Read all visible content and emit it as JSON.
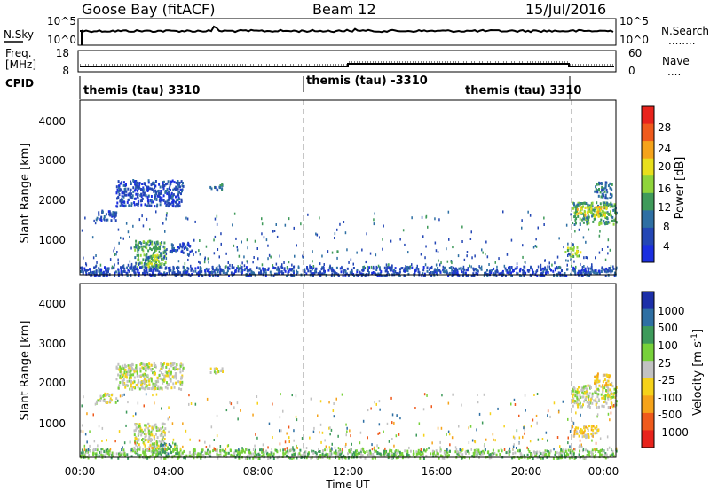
{
  "header": {
    "station": "Goose Bay (fitACF)",
    "beam": "Beam 12",
    "date": "15/Jul/2016"
  },
  "noise_panel": {
    "left_label": "N.Sky",
    "left_ticks": [
      "10^5",
      "10^0"
    ],
    "right_ticks": [
      "10^5",
      "10^0"
    ],
    "right_label": "N.Search",
    "right_legend": "........"
  },
  "freq_panel": {
    "left_label_1": "Freq.",
    "left_label_2": "[MHz]",
    "left_ticks": [
      "18",
      "8"
    ],
    "right_ticks": [
      "60",
      "0"
    ],
    "right_label": "Nave",
    "right_legend": "...."
  },
  "cpid": {
    "label": "CPID",
    "segments": [
      {
        "text": "themis (tau) 3310"
      },
      {
        "text": "themis (tau) -3310"
      },
      {
        "text": "themis (tau) 3310"
      }
    ]
  },
  "axes": {
    "ylabel": "Slant Range [km]",
    "yticks": [
      "4000",
      "3000",
      "2000",
      "1000"
    ],
    "xticks": [
      "00:00",
      "04:00",
      "08:00",
      "12:00",
      "16:00",
      "20:00",
      "00:00"
    ],
    "xlabel": "Time UT"
  },
  "power_scale": {
    "label": "Power [dB]",
    "ticks": [
      "28",
      "24",
      "20",
      "16",
      "12",
      "8",
      "4"
    ],
    "colors": [
      "#e8231c",
      "#ef5a1c",
      "#f5a31a",
      "#e8df1c",
      "#8fd43a",
      "#3f9a5a",
      "#2e6fa3",
      "#2447b5",
      "#1b2fe0"
    ]
  },
  "velocity_scale": {
    "label": "Velocity [m s",
    "label_sup": "-1",
    "label_end": "]",
    "ticks": [
      "1000",
      "500",
      "100",
      "25",
      "-25",
      "-100",
      "-500",
      "-1000"
    ],
    "colors": [
      "#1c2fa8",
      "#2e6fa3",
      "#3d9a5a",
      "#77d13a",
      "#c2c2c2",
      "#f5d21a",
      "#f5a31a",
      "#ef5a1c",
      "#e8231c"
    ]
  },
  "chart_data": {
    "type": "heatmap",
    "x_range_hours": [
      0,
      24
    ],
    "y_range_km": [
      180,
      4500
    ],
    "cpid_changes_hours": [
      10,
      22
    ],
    "power_patches": [
      {
        "t0": 0.7,
        "t1": 1.6,
        "r0": 1550,
        "r1": 1800,
        "level": 1
      },
      {
        "t0": 1.6,
        "t1": 4.6,
        "r0": 1900,
        "r1": 2550,
        "level": 1
      },
      {
        "t0": 2.4,
        "t1": 3.8,
        "r0": 400,
        "r1": 1050,
        "level": 3
      },
      {
        "t0": 3.0,
        "t1": 3.6,
        "r0": 380,
        "r1": 700,
        "level": 4
      },
      {
        "t0": 5.8,
        "t1": 6.4,
        "r0": 2300,
        "r1": 2450,
        "level": 2
      },
      {
        "t0": 4.0,
        "t1": 5.0,
        "r0": 750,
        "r1": 1000,
        "level": 1
      },
      {
        "t0": 22.0,
        "t1": 24.0,
        "r0": 1450,
        "r1": 2000,
        "level": 3
      },
      {
        "t0": 22.2,
        "t1": 23.6,
        "r0": 1650,
        "r1": 1900,
        "level": 5
      },
      {
        "t0": 23.0,
        "t1": 23.8,
        "r0": 2100,
        "r1": 2500,
        "level": 2
      },
      {
        "t0": 21.7,
        "t1": 22.4,
        "r0": 650,
        "r1": 900,
        "level": 4
      },
      {
        "t0": 0.0,
        "t1": 24.0,
        "r0": 180,
        "r1": 400,
        "level": 1
      }
    ],
    "velocity_patches": [
      {
        "t0": 0.7,
        "t1": 1.6,
        "r0": 1550,
        "r1": 1800,
        "level": 4
      },
      {
        "t0": 1.6,
        "t1": 4.6,
        "r0": 1900,
        "r1": 2550,
        "level": 4
      },
      {
        "t0": 2.4,
        "t1": 3.8,
        "r0": 400,
        "r1": 1050,
        "level": 4
      },
      {
        "t0": 3.2,
        "t1": 4.4,
        "r0": 300,
        "r1": 550,
        "level": 6
      },
      {
        "t0": 5.8,
        "t1": 6.4,
        "r0": 2300,
        "r1": 2450,
        "level": 4
      },
      {
        "t0": 22.0,
        "t1": 24.0,
        "r0": 1450,
        "r1": 2000,
        "level": 4
      },
      {
        "t0": 23.0,
        "t1": 23.8,
        "r0": 2000,
        "r1": 2300,
        "level": 3
      },
      {
        "t0": 22.0,
        "t1": 23.2,
        "r0": 700,
        "r1": 1000,
        "level": 3
      },
      {
        "t0": 0.0,
        "t1": 24.0,
        "r0": 180,
        "r1": 400,
        "level": 5
      }
    ]
  }
}
